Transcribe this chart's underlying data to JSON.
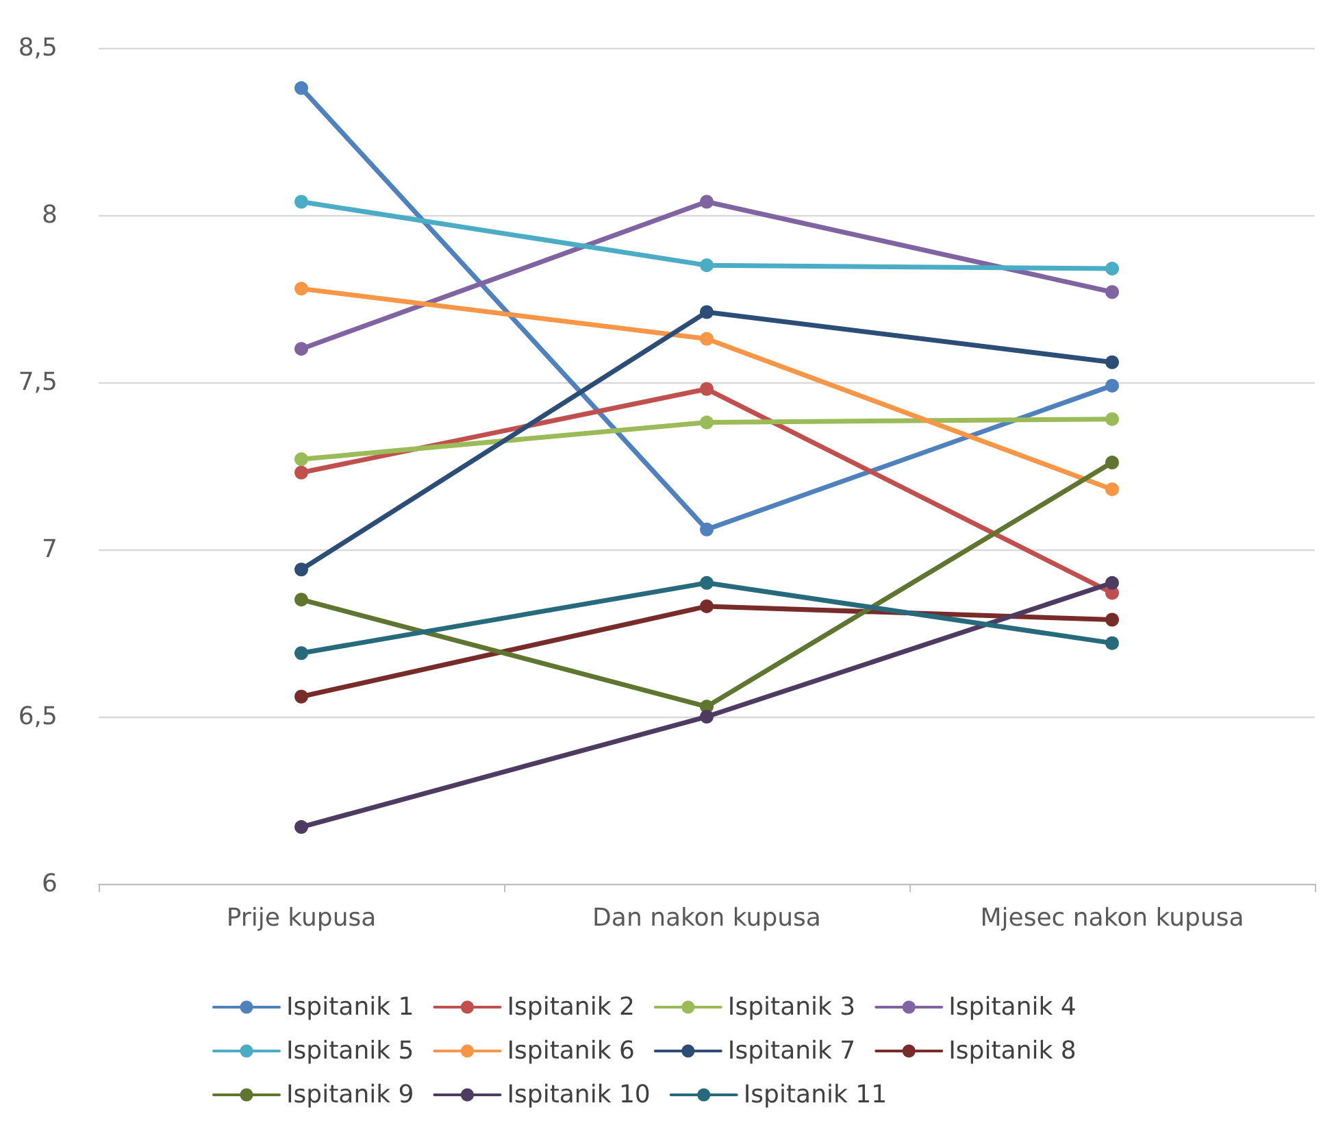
{
  "chart_data": {
    "type": "line",
    "categories": [
      "Prije kupusa",
      "Dan nakon kupusa",
      "Mjesec nakon kupusa"
    ],
    "series": [
      {
        "name": "Ispitanik 1",
        "color": "#4f81bd",
        "values": [
          8.38,
          7.06,
          7.49
        ]
      },
      {
        "name": "Ispitanik 2",
        "color": "#c0504d",
        "values": [
          7.23,
          7.48,
          6.87
        ]
      },
      {
        "name": "Ispitanik 3",
        "color": "#9bbb59",
        "values": [
          7.27,
          7.38,
          7.39
        ]
      },
      {
        "name": "Ispitanik 4",
        "color": "#8064a2",
        "values": [
          7.6,
          8.04,
          7.77
        ]
      },
      {
        "name": "Ispitanik 5",
        "color": "#4bacc6",
        "values": [
          8.04,
          7.85,
          7.84
        ]
      },
      {
        "name": "Ispitanik 6",
        "color": "#f79646",
        "values": [
          7.78,
          7.63,
          7.18
        ]
      },
      {
        "name": "Ispitanik 7",
        "color": "#2c4d75",
        "values": [
          6.94,
          7.71,
          7.56
        ]
      },
      {
        "name": "Ispitanik 8",
        "color": "#772c2a",
        "values": [
          6.56,
          6.83,
          6.79
        ]
      },
      {
        "name": "Ispitanik 9",
        "color": "#5f7530",
        "values": [
          6.85,
          6.53,
          7.26
        ]
      },
      {
        "name": "Ispitanik 10",
        "color": "#4d3b62",
        "values": [
          6.17,
          6.5,
          6.9
        ]
      },
      {
        "name": "Ispitanik 11",
        "color": "#276a7c",
        "values": [
          6.69,
          6.9,
          6.72
        ]
      }
    ],
    "ylim": [
      6,
      8.5
    ],
    "yticks": [
      6,
      {
        "value": 6.5,
        "label": "6,5"
      },
      7,
      {
        "value": 7.5,
        "label": "7,5"
      },
      8,
      {
        "value": 8.5,
        "label": "8,5"
      }
    ],
    "grid": "y",
    "legend": "bottom",
    "marker": "circle",
    "line_style": "solid"
  }
}
